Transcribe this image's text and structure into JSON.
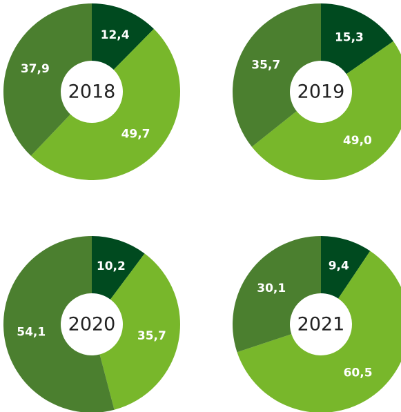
{
  "chart_data": [
    {
      "type": "pie",
      "title": "2018",
      "values": [
        12.4,
        49.7,
        37.9
      ],
      "value_labels": [
        "12,4",
        "49,7",
        "37,9"
      ],
      "colors": [
        "#004a1f",
        "#78b72b",
        "#4b7f2f"
      ]
    },
    {
      "type": "pie",
      "title": "2019",
      "values": [
        15.3,
        49.0,
        35.7
      ],
      "value_labels": [
        "15,3",
        "49,0",
        "35,7"
      ],
      "colors": [
        "#004a1f",
        "#78b72b",
        "#4b7f2f"
      ]
    },
    {
      "type": "pie",
      "title": "2020",
      "values": [
        10.2,
        35.7,
        54.1
      ],
      "value_labels": [
        "10,2",
        "35,7",
        "54,1"
      ],
      "colors": [
        "#004a1f",
        "#78b72b",
        "#4b7f2f"
      ]
    },
    {
      "type": "pie",
      "title": "2021",
      "values": [
        9.4,
        60.5,
        30.1
      ],
      "value_labels": [
        "9,4",
        "60,5",
        "30,1"
      ],
      "colors": [
        "#004a1f",
        "#78b72b",
        "#4b7f2f"
      ]
    }
  ]
}
